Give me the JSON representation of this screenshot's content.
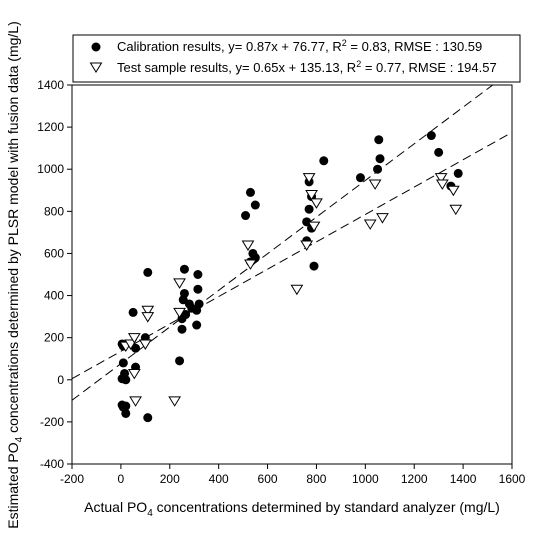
{
  "chart_data": {
    "type": "scatter",
    "xlabel_pre": "Actual PO",
    "xlabel_sub": "4",
    "xlabel_post": " concentrations determined by standard analyzer (mg/L)",
    "ylabel_pre": "Estimated PO",
    "ylabel_sub": "4",
    "ylabel_post": " concentrations determined by PLSR model with fusion data (mg/L)",
    "xlim": [
      -200,
      1600
    ],
    "ylim": [
      -400,
      1400
    ],
    "x_ticks": [
      -200,
      0,
      200,
      400,
      600,
      800,
      1000,
      1200,
      1400,
      1600
    ],
    "y_ticks": [
      -400,
      -200,
      0,
      200,
      400,
      600,
      800,
      1000,
      1200,
      1400
    ],
    "grid": false,
    "legend_position": "top",
    "series": [
      {
        "legend_pre": "Calibration results, y= 0.87x + 76.77, R",
        "legend_sup": "2",
        "legend_post": " = 0.83, RMSE : 130.59",
        "marker": "filled-circle",
        "fit": {
          "slope": 0.87,
          "intercept": 76.77
        },
        "points": [
          [
            5,
            170
          ],
          [
            10,
            160
          ],
          [
            10,
            80
          ],
          [
            15,
            30
          ],
          [
            5,
            5
          ],
          [
            20,
            0
          ],
          [
            5,
            -120
          ],
          [
            10,
            -130
          ],
          [
            20,
            -160
          ],
          [
            20,
            -125
          ],
          [
            50,
            320
          ],
          [
            60,
            150
          ],
          [
            60,
            60
          ],
          [
            100,
            200
          ],
          [
            110,
            510
          ],
          [
            110,
            -180
          ],
          [
            240,
            90
          ],
          [
            250,
            290
          ],
          [
            250,
            240
          ],
          [
            255,
            380
          ],
          [
            260,
            410
          ],
          [
            260,
            525
          ],
          [
            265,
            310
          ],
          [
            280,
            360
          ],
          [
            290,
            340
          ],
          [
            310,
            330
          ],
          [
            310,
            260
          ],
          [
            315,
            430
          ],
          [
            315,
            500
          ],
          [
            320,
            360
          ],
          [
            510,
            780
          ],
          [
            530,
            890
          ],
          [
            530,
            560
          ],
          [
            540,
            600
          ],
          [
            550,
            830
          ],
          [
            550,
            580
          ],
          [
            760,
            750
          ],
          [
            760,
            660
          ],
          [
            770,
            940
          ],
          [
            770,
            810
          ],
          [
            780,
            720
          ],
          [
            780,
            870
          ],
          [
            790,
            540
          ],
          [
            830,
            1040
          ],
          [
            980,
            960
          ],
          [
            1050,
            1000
          ],
          [
            1055,
            1140
          ],
          [
            1060,
            1050
          ],
          [
            1270,
            1160
          ],
          [
            1300,
            1080
          ],
          [
            1350,
            920
          ],
          [
            1380,
            980
          ]
        ]
      },
      {
        "legend_pre": "Test sample results, y= 0.65x + 135.13, R",
        "legend_sup": "2",
        "legend_post": " = 0.77, RMSE : 194.57",
        "marker": "open-triangle-down",
        "fit": {
          "slope": 0.65,
          "intercept": 135.13
        },
        "points": [
          [
            20,
            160
          ],
          [
            40,
            170
          ],
          [
            55,
            200
          ],
          [
            55,
            30
          ],
          [
            60,
            -100
          ],
          [
            100,
            170
          ],
          [
            110,
            330
          ],
          [
            110,
            300
          ],
          [
            220,
            -100
          ],
          [
            240,
            320
          ],
          [
            240,
            460
          ],
          [
            520,
            640
          ],
          [
            530,
            550
          ],
          [
            720,
            430
          ],
          [
            760,
            640
          ],
          [
            770,
            960
          ],
          [
            780,
            880
          ],
          [
            790,
            730
          ],
          [
            800,
            840
          ],
          [
            1020,
            740
          ],
          [
            1040,
            930
          ],
          [
            1070,
            770
          ],
          [
            1310,
            960
          ],
          [
            1315,
            930
          ],
          [
            1360,
            900
          ],
          [
            1370,
            810
          ]
        ]
      }
    ]
  }
}
